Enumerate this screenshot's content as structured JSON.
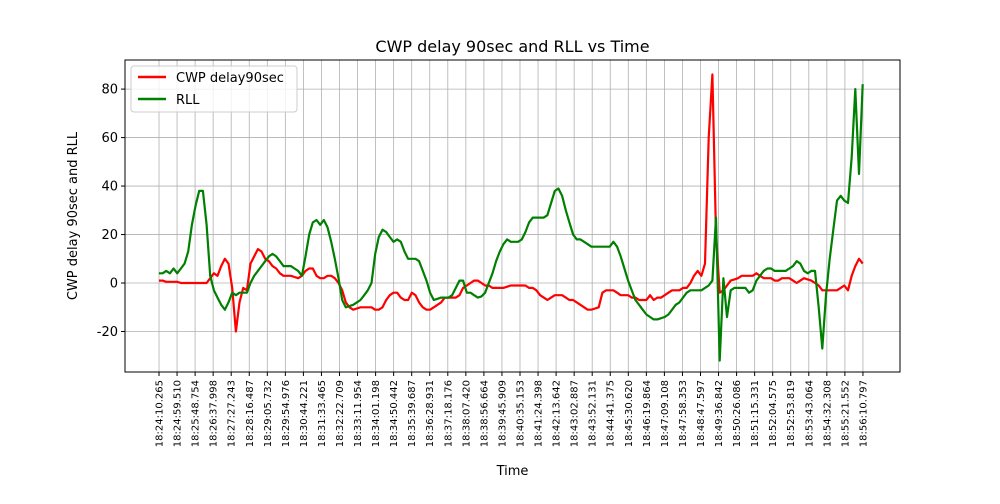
{
  "chart_data": {
    "type": "line",
    "title": "CWP delay 90sec and RLL vs Time",
    "xlabel": "Time",
    "ylabel": "CWP delay 90sec and RLL",
    "grid": true,
    "legend_position": "top-left",
    "xlim": [
      "18:22:37.5",
      "18:57:51.9"
    ],
    "ylim": [
      -36.7,
      92
    ],
    "y_ticks": [
      -20,
      0,
      20,
      40,
      60,
      80
    ],
    "x_tick_labels": [
      "18:24:10.265",
      "18:24:59.510",
      "18:25:48.754",
      "18:26:37.998",
      "18:27:27.243",
      "18:28:16.487",
      "18:29:05.732",
      "18:29:54.976",
      "18:30:44.221",
      "18:31:33.465",
      "18:32:22.709",
      "18:33:11.954",
      "18:34:01.198",
      "18:34:50.442",
      "18:35:39.687",
      "18:36:28.931",
      "18:37:18.176",
      "18:38:07.420",
      "18:38:56.664",
      "18:39:45.909",
      "18:40:35.153",
      "18:41:24.398",
      "18:42:13.642",
      "18:43:02.887",
      "18:43:52.131",
      "18:44:41.375",
      "18:45:30.620",
      "18:46:19.864",
      "18:47:09.108",
      "18:47:58.353",
      "18:48:47.597",
      "18:49:36.842",
      "18:50:26.086",
      "18:51:15.331",
      "18:52:04.575",
      "18:52:53.819",
      "18:53:43.064",
      "18:54:32.308",
      "18:55:21.552",
      "18:56:10.797"
    ],
    "x": [
      "18:24:10",
      "18:24:20",
      "18:24:30",
      "18:24:40",
      "18:24:50",
      "18:25:00",
      "18:25:10",
      "18:25:20",
      "18:25:30",
      "18:25:40",
      "18:25:50",
      "18:26:00",
      "18:26:10",
      "18:26:20",
      "18:26:30",
      "18:26:40",
      "18:26:50",
      "18:27:00",
      "18:27:10",
      "18:27:20",
      "18:27:30",
      "18:27:40",
      "18:27:50",
      "18:28:00",
      "18:28:10",
      "18:28:20",
      "18:28:30",
      "18:28:40",
      "18:28:50",
      "18:29:00",
      "18:29:10",
      "18:29:20",
      "18:29:30",
      "18:29:40",
      "18:29:50",
      "18:30:00",
      "18:30:10",
      "18:30:20",
      "18:30:30",
      "18:30:40",
      "18:30:50",
      "18:31:00",
      "18:31:10",
      "18:31:20",
      "18:31:30",
      "18:31:40",
      "18:31:50",
      "18:32:00",
      "18:32:10",
      "18:32:20",
      "18:32:30",
      "18:32:40",
      "18:32:50",
      "18:33:00",
      "18:33:10",
      "18:33:20",
      "18:33:30",
      "18:33:40",
      "18:33:50",
      "18:34:00",
      "18:34:10",
      "18:34:20",
      "18:34:30",
      "18:34:40",
      "18:34:50",
      "18:35:00",
      "18:35:10",
      "18:35:20",
      "18:35:30",
      "18:35:40",
      "18:35:50",
      "18:36:00",
      "18:36:10",
      "18:36:20",
      "18:36:30",
      "18:36:40",
      "18:36:50",
      "18:37:00",
      "18:37:10",
      "18:37:20",
      "18:37:30",
      "18:37:40",
      "18:37:50",
      "18:38:00",
      "18:38:10",
      "18:38:20",
      "18:38:30",
      "18:38:40",
      "18:38:50",
      "18:39:00",
      "18:39:10",
      "18:39:20",
      "18:39:30",
      "18:39:40",
      "18:39:50",
      "18:40:00",
      "18:40:10",
      "18:40:20",
      "18:40:30",
      "18:40:40",
      "18:40:50",
      "18:41:00",
      "18:41:10",
      "18:41:20",
      "18:41:30",
      "18:41:40",
      "18:41:50",
      "18:42:00",
      "18:42:10",
      "18:42:20",
      "18:42:30",
      "18:42:40",
      "18:42:50",
      "18:43:00",
      "18:43:10",
      "18:43:20",
      "18:43:30",
      "18:43:40",
      "18:43:50",
      "18:44:00",
      "18:44:10",
      "18:44:20",
      "18:44:30",
      "18:44:40",
      "18:44:50",
      "18:45:00",
      "18:45:10",
      "18:45:20",
      "18:45:30",
      "18:45:40",
      "18:45:50",
      "18:46:00",
      "18:46:10",
      "18:46:20",
      "18:46:30",
      "18:46:40",
      "18:46:50",
      "18:47:00",
      "18:47:10",
      "18:47:20",
      "18:47:30",
      "18:47:40",
      "18:47:50",
      "18:48:00",
      "18:48:10",
      "18:48:20",
      "18:48:30",
      "18:48:40",
      "18:48:50",
      "18:49:00",
      "18:49:10",
      "18:49:20",
      "18:49:30",
      "18:49:40",
      "18:49:50",
      "18:50:00",
      "18:50:10",
      "18:50:20",
      "18:50:30",
      "18:50:40",
      "18:50:50",
      "18:51:00",
      "18:51:10",
      "18:51:20",
      "18:51:30",
      "18:51:40",
      "18:51:50",
      "18:52:00",
      "18:52:10",
      "18:52:20",
      "18:52:30",
      "18:52:40",
      "18:52:50",
      "18:53:00",
      "18:53:10",
      "18:53:20",
      "18:53:30",
      "18:53:40",
      "18:53:50",
      "18:54:00",
      "18:54:10",
      "18:54:20",
      "18:54:30",
      "18:54:40",
      "18:54:50",
      "18:55:00",
      "18:55:10",
      "18:55:20",
      "18:55:30",
      "18:55:40",
      "18:55:50",
      "18:56:00",
      "18:56:10"
    ],
    "series": [
      {
        "name": "CWP delay90sec",
        "color": "#ff0000",
        "values": [
          1,
          1,
          0.5,
          0.5,
          0.5,
          0.5,
          0,
          0,
          0,
          0,
          0,
          0,
          0,
          0,
          2,
          4,
          3,
          7,
          10,
          8,
          -2,
          -20,
          -8,
          -2,
          -3,
          8,
          11,
          14,
          13,
          10,
          9,
          7,
          6,
          4,
          3,
          3,
          3,
          2.5,
          2,
          3,
          5,
          6,
          6,
          3,
          2,
          2,
          3,
          3,
          2,
          0,
          -3,
          -8,
          -10,
          -11,
          -10.5,
          -10,
          -10,
          -10,
          -10,
          -11,
          -11,
          -10,
          -7,
          -5,
          -4,
          -4,
          -6,
          -7,
          -7,
          -4,
          -5,
          -8,
          -10,
          -11,
          -11,
          -10,
          -9,
          -8,
          -6,
          -6,
          -6,
          -6,
          -5,
          -2,
          -1,
          0,
          1,
          1,
          0,
          -1,
          -1,
          -2,
          -2,
          -2,
          -2,
          -1.5,
          -1,
          -1,
          -1,
          -1,
          -1,
          -2,
          -2,
          -3,
          -5,
          -6,
          -7,
          -6,
          -5,
          -5,
          -5,
          -6,
          -7,
          -7,
          -8,
          -9,
          -10,
          -11,
          -11,
          -10.5,
          -10,
          -4,
          -3,
          -3,
          -3,
          -4,
          -5,
          -5,
          -5,
          -6,
          -6,
          -7,
          -7,
          -7,
          -5,
          -7,
          -6,
          -6,
          -5,
          -4,
          -3,
          -3,
          -3,
          -2,
          -2,
          0,
          3,
          5,
          3,
          8,
          60,
          86,
          20,
          -4,
          -3,
          -1,
          1,
          1.5,
          2,
          3,
          3,
          3,
          3,
          4,
          3,
          2,
          2,
          2,
          1,
          1,
          2,
          2,
          2,
          1,
          0,
          1,
          2,
          1.5,
          1,
          0,
          -1,
          -3,
          -3,
          -3,
          -3,
          -3,
          -2,
          -1,
          -3,
          3,
          7,
          10,
          8
        ]
      },
      {
        "name": "RLL",
        "color": "#008000",
        "values": [
          4,
          4,
          5,
          4,
          6,
          4,
          6,
          8,
          13,
          24,
          32,
          38,
          38,
          24,
          3,
          -3,
          -6,
          -9,
          -11,
          -8,
          -4,
          -5,
          -4,
          -4,
          -4,
          0,
          3,
          5,
          7,
          9,
          11,
          12,
          11,
          9,
          7,
          7,
          7,
          6,
          5,
          3,
          11,
          20,
          25,
          26,
          24,
          26,
          23,
          17,
          10,
          2,
          -7,
          -10,
          -9.5,
          -9,
          -8,
          -7,
          -5,
          -3,
          0,
          12,
          19,
          22,
          21,
          19,
          17,
          18,
          17,
          13,
          10,
          10,
          10,
          9,
          5,
          1,
          -4,
          -7,
          -6.5,
          -6,
          -6,
          -6,
          -5,
          -2,
          1,
          1,
          -4,
          -4,
          -5,
          -6,
          -5.5,
          -4,
          0,
          4,
          9,
          13,
          16,
          18,
          17,
          17,
          17,
          18,
          21,
          25,
          27,
          27,
          27,
          27,
          28,
          33,
          38,
          39,
          36,
          30,
          25,
          20,
          18,
          18,
          17,
          16,
          15,
          15,
          15,
          15,
          15,
          15,
          17,
          15,
          11,
          6,
          1,
          -3,
          -7,
          -9,
          -11,
          -13,
          -14,
          -15,
          -15,
          -14.5,
          -14,
          -13,
          -11,
          -9,
          -8,
          -6,
          -4,
          -3,
          -3,
          -3,
          -3,
          -2,
          -1,
          1,
          27,
          -32,
          2,
          -14,
          -3,
          -2,
          -2,
          -2,
          -2,
          -4,
          -3,
          1,
          3,
          5,
          6,
          6,
          5,
          5,
          5,
          5,
          6,
          7,
          9,
          8,
          5,
          4,
          5,
          5,
          -10,
          -27,
          -5,
          10,
          22,
          34,
          36,
          34,
          33,
          52,
          80,
          45,
          82
        ]
      }
    ]
  }
}
